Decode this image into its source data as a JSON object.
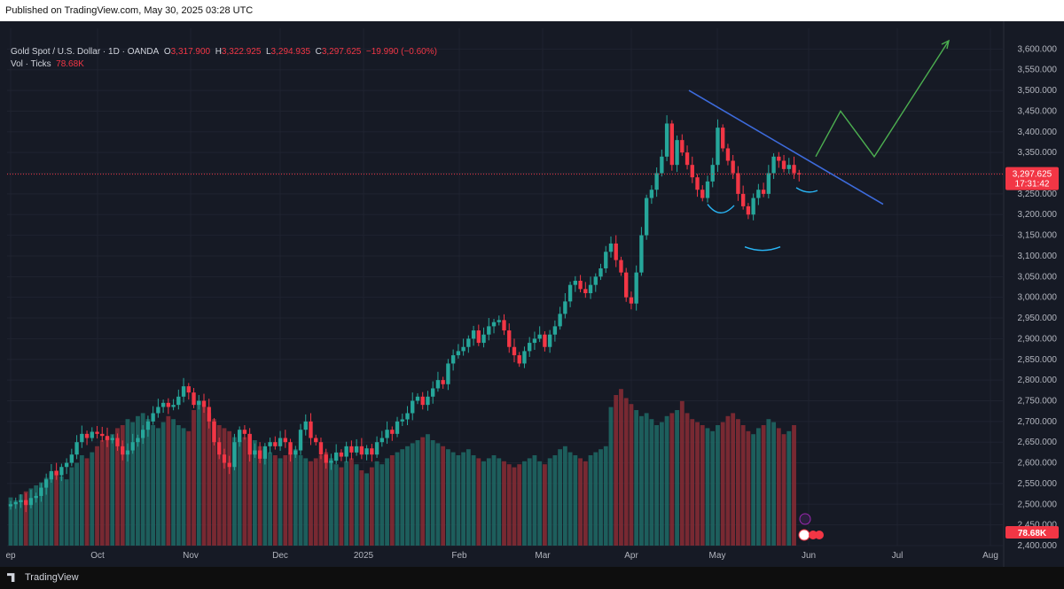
{
  "header": {
    "published": "Published on TradingView.com, May 30, 2025 03:28 UTC"
  },
  "legend": {
    "symbol": "Gold Spot / U.S. Dollar · 1D · OANDA",
    "open_label": "O",
    "open": "3,317.900",
    "high_label": "H",
    "high": "3,322.925",
    "low_label": "L",
    "low": "3,294.935",
    "close_label": "C",
    "close": "3,297.625",
    "change": "−19.990 (−0.60%)",
    "vol_label": "Vol · Ticks",
    "vol_value": "78.68K"
  },
  "price_tag": {
    "price": "3,297.625",
    "countdown": "17:31:42"
  },
  "volume_tag": "78.68K",
  "footer": {
    "brand": "TradingView"
  },
  "colors": {
    "up": "#26a69a",
    "down": "#f23645",
    "trendline": "#3d6bdc",
    "projection": "#4caf50",
    "pattern": "#29b6f6"
  },
  "chart_data": {
    "type": "candlestick",
    "title": "Gold Spot / U.S. Dollar · 1D · OANDA",
    "ylim": [
      2400,
      3650
    ],
    "y_ticks": [
      "3,600.000",
      "3,550.000",
      "3,500.000",
      "3,450.000",
      "3,400.000",
      "3,350.000",
      "3,300.000",
      "3,250.000",
      "3,200.000",
      "3,150.000",
      "3,100.000",
      "3,050.000",
      "3,000.000",
      "2,950.000",
      "2,900.000",
      "2,850.000",
      "2,800.000",
      "2,750.000",
      "2,700.000",
      "2,650.000",
      "2,600.000",
      "2,550.000",
      "2,500.000",
      "2,450.000",
      "2,400.000"
    ],
    "x_ticks": [
      "ep",
      "Oct",
      "Nov",
      "Dec",
      "2025",
      "Feb",
      "Mar",
      "Apr",
      "May",
      "Jun",
      "Jul",
      "Aug"
    ],
    "last_price": 3297.625,
    "trendline": {
      "from_price": 3500,
      "to_price": 3225
    },
    "projection_path": [
      3340,
      3450,
      3340,
      3620
    ],
    "close_series": [
      2500,
      2505,
      2510,
      2498,
      2515,
      2520,
      2540,
      2560,
      2580,
      2570,
      2590,
      2600,
      2620,
      2650,
      2670,
      2660,
      2675,
      2670,
      2665,
      2655,
      2660,
      2640,
      2620,
      2630,
      2650,
      2660,
      2680,
      2700,
      2720,
      2735,
      2745,
      2735,
      2740,
      2760,
      2785,
      2770,
      2740,
      2750,
      2735,
      2700,
      2650,
      2620,
      2600,
      2590,
      2650,
      2680,
      2670,
      2620,
      2630,
      2610,
      2640,
      2650,
      2640,
      2660,
      2650,
      2620,
      2630,
      2680,
      2700,
      2660,
      2650,
      2620,
      2600,
      2605,
      2625,
      2615,
      2640,
      2625,
      2640,
      2620,
      2635,
      2620,
      2650,
      2660,
      2680,
      2670,
      2700,
      2705,
      2720,
      2750,
      2760,
      2740,
      2760,
      2780,
      2800,
      2790,
      2840,
      2860,
      2870,
      2880,
      2900,
      2920,
      2890,
      2910,
      2930,
      2940,
      2945,
      2920,
      2880,
      2860,
      2840,
      2870,
      2890,
      2900,
      2910,
      2880,
      2910,
      2930,
      2960,
      2990,
      3030,
      3040,
      3020,
      3010,
      3030,
      3050,
      3070,
      3110,
      3130,
      3090,
      3060,
      3000,
      2985,
      3060,
      3150,
      3240,
      3260,
      3300,
      3340,
      3420,
      3320,
      3380,
      3350,
      3320,
      3290,
      3260,
      3240,
      3280,
      3320,
      3410,
      3360,
      3330,
      3300,
      3250,
      3220,
      3200,
      3240,
      3260,
      3250,
      3300,
      3340,
      3330,
      3310,
      3320,
      3300,
      3297
    ],
    "volume_series": [
      32,
      30,
      34,
      36,
      38,
      40,
      42,
      45,
      48,
      50,
      46,
      44,
      52,
      55,
      60,
      58,
      62,
      66,
      70,
      72,
      74,
      78,
      80,
      84,
      82,
      86,
      88,
      84,
      80,
      78,
      82,
      86,
      84,
      80,
      78,
      76,
      90,
      96,
      92,
      88,
      84,
      80,
      78,
      76,
      72,
      70,
      72,
      74,
      70,
      66,
      64,
      62,
      60,
      58,
      60,
      62,
      64,
      60,
      58,
      56,
      58,
      60,
      62,
      58,
      54,
      52,
      56,
      58,
      54,
      50,
      48,
      52,
      56,
      54,
      58,
      60,
      62,
      64,
      66,
      68,
      70,
      72,
      74,
      70,
      68,
      66,
      64,
      62,
      60,
      62,
      64,
      60,
      58,
      56,
      58,
      60,
      58,
      56,
      54,
      52,
      54,
      56,
      58,
      60,
      56,
      54,
      58,
      60,
      64,
      66,
      62,
      60,
      58,
      56,
      60,
      62,
      64,
      66,
      92,
      100,
      104,
      98,
      94,
      90,
      86,
      88,
      84,
      80,
      82,
      86,
      88,
      90,
      96,
      88,
      84,
      82,
      80,
      78,
      76,
      80,
      82,
      86,
      88,
      84,
      80,
      76,
      74,
      78,
      80,
      84,
      82,
      78,
      74,
      76,
      80
    ]
  }
}
